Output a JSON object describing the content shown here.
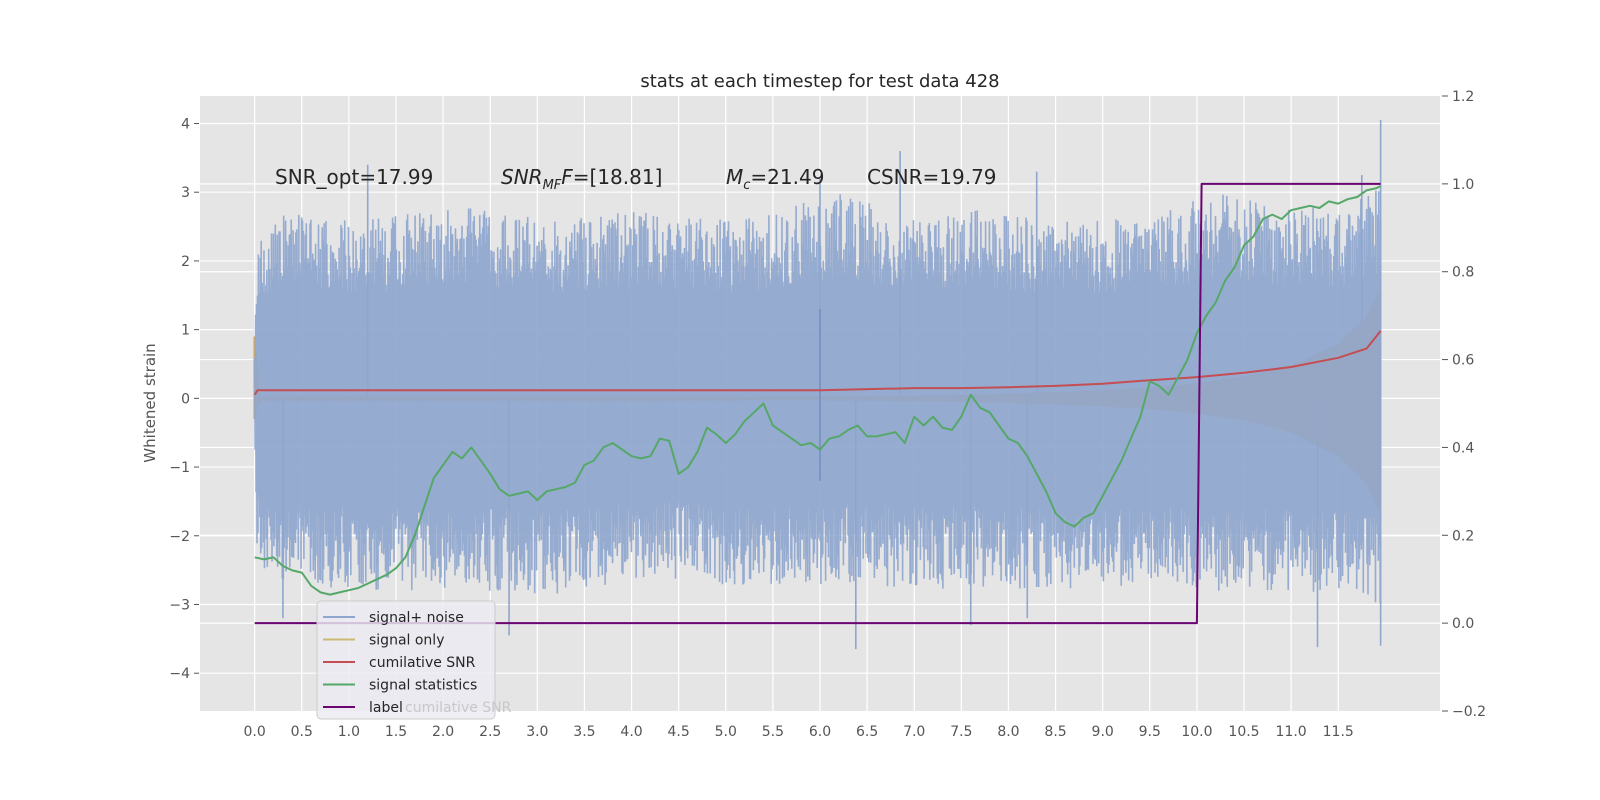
{
  "chart_data": {
    "type": "line",
    "title": "stats at each timestep for test data 428",
    "ylabel": "Whitened strain",
    "xlim": [
      -0.58,
      12.58
    ],
    "ylim": [
      -4.55,
      4.4
    ],
    "y2lim": [
      -0.2,
      1.2
    ],
    "xticks": [
      "0.0",
      "0.5",
      "1.0",
      "1.5",
      "2.0",
      "2.5",
      "3.0",
      "3.5",
      "4.0",
      "4.5",
      "5.0",
      "5.5",
      "6.0",
      "6.5",
      "7.0",
      "7.5",
      "8.0",
      "8.5",
      "9.0",
      "9.5",
      "10.0",
      "10.5",
      "11.0",
      "11.5"
    ],
    "yticks": [
      "4",
      "3",
      "2",
      "1",
      "0",
      "−1",
      "−2",
      "−3",
      "−4"
    ],
    "y2ticks": [
      "1.2",
      "1.0",
      "0.8",
      "0.6",
      "0.4",
      "0.2",
      "0.0",
      "−0.2"
    ],
    "grid": true,
    "legend_placement": "lower-left",
    "annotations": [
      "SNR_opt=17.99",
      "[18.81]",
      "=21.49",
      "CSNR=19.79"
    ],
    "annotation_math": {
      "snr": "SNR",
      "mf": "MF",
      "mc": "M",
      "mc_sub": "c"
    },
    "noise_envelope": {
      "x": [
        0,
        0.02,
        0.2,
        1.2,
        2.2,
        3.2,
        4.2,
        5.2,
        6.2,
        7.0,
        7.6,
        8.3,
        8.9,
        9.6,
        10.2,
        10.9,
        11.6,
        11.95
      ],
      "upper": [
        0.9,
        2.3,
        2.7,
        2.6,
        2.8,
        2.6,
        2.75,
        2.6,
        3.0,
        2.6,
        2.8,
        2.6,
        2.6,
        2.75,
        3.0,
        2.8,
        2.8,
        3.1
      ],
      "lower": [
        -0.6,
        -2.4,
        -2.7,
        -2.8,
        -2.8,
        -2.85,
        -2.6,
        -2.75,
        -2.7,
        -2.8,
        -2.75,
        -2.8,
        -2.75,
        -2.7,
        -2.8,
        -2.8,
        -2.85,
        -3.0
      ]
    },
    "noise_spikes": [
      {
        "x": 1.2,
        "y": 3.4
      },
      {
        "x": 0.3,
        "y": -3.2
      },
      {
        "x": 2.7,
        "y": -3.45
      },
      {
        "x": 6.0,
        "y": 3.2
      },
      {
        "x": 6.38,
        "y": -3.65
      },
      {
        "x": 6.85,
        "y": 3.6
      },
      {
        "x": 7.6,
        "y": -3.3
      },
      {
        "x": 8.2,
        "y": -3.2
      },
      {
        "x": 8.3,
        "y": 3.3
      },
      {
        "x": 11.28,
        "y": -3.62
      },
      {
        "x": 11.75,
        "y": 3.25
      },
      {
        "x": 11.95,
        "y": 4.05
      },
      {
        "x": 11.95,
        "y": -3.6
      }
    ],
    "signal_envelope": {
      "x": [
        0,
        0.01,
        0.05,
        0.1,
        1,
        2,
        3,
        4,
        5,
        6,
        7,
        7.5,
        8,
        8.5,
        9,
        9.5,
        10,
        10.5,
        11,
        11.5,
        11.8,
        11.95
      ],
      "upper": [
        0.9,
        0.9,
        0.05,
        0.02,
        0.02,
        0.02,
        0.02,
        0.02,
        0.02,
        0.03,
        0.04,
        0.05,
        0.07,
        0.09,
        0.12,
        0.16,
        0.22,
        0.32,
        0.48,
        0.8,
        1.2,
        1.6
      ],
      "lower": [
        -0.3,
        -0.3,
        -0.05,
        -0.02,
        -0.02,
        -0.02,
        -0.02,
        -0.02,
        -0.02,
        -0.03,
        -0.04,
        -0.05,
        -0.07,
        -0.09,
        -0.12,
        -0.16,
        -0.22,
        -0.32,
        -0.5,
        -0.85,
        -1.25,
        -1.7
      ]
    },
    "series": [
      {
        "name": "cumilative SNR",
        "axis": "right",
        "color": "#c44e52",
        "x": [
          0,
          0.03,
          1,
          2,
          3,
          4,
          5,
          6,
          7,
          7.5,
          8,
          8.5,
          9,
          9.5,
          10,
          10.5,
          11,
          11.5,
          11.8,
          11.95
        ],
        "y": [
          0.52,
          0.53,
          0.53,
          0.53,
          0.53,
          0.53,
          0.53,
          0.53,
          0.535,
          0.535,
          0.537,
          0.54,
          0.545,
          0.553,
          0.56,
          0.57,
          0.583,
          0.604,
          0.625,
          0.665
        ]
      },
      {
        "name": "signal statistics",
        "axis": "right",
        "color": "#55a868",
        "x": [
          0,
          0.1,
          0.2,
          0.3,
          0.4,
          0.5,
          0.6,
          0.7,
          0.8,
          0.9,
          1.0,
          1.1,
          1.2,
          1.3,
          1.4,
          1.5,
          1.6,
          1.7,
          1.8,
          1.9,
          2.0,
          2.1,
          2.2,
          2.3,
          2.4,
          2.5,
          2.6,
          2.7,
          2.8,
          2.9,
          3.0,
          3.1,
          3.2,
          3.3,
          3.4,
          3.5,
          3.6,
          3.7,
          3.8,
          3.9,
          4.0,
          4.1,
          4.2,
          4.3,
          4.4,
          4.5,
          4.6,
          4.7,
          4.8,
          4.9,
          5.0,
          5.1,
          5.2,
          5.3,
          5.4,
          5.5,
          5.6,
          5.7,
          5.8,
          5.9,
          6.0,
          6.1,
          6.2,
          6.3,
          6.4,
          6.5,
          6.6,
          6.7,
          6.8,
          6.9,
          7.0,
          7.1,
          7.2,
          7.3,
          7.4,
          7.5,
          7.6,
          7.7,
          7.8,
          7.9,
          8.0,
          8.1,
          8.2,
          8.3,
          8.4,
          8.5,
          8.6,
          8.7,
          8.8,
          8.9,
          9.0,
          9.1,
          9.2,
          9.3,
          9.4,
          9.5,
          9.6,
          9.7,
          9.8,
          9.9,
          10.0,
          10.1,
          10.2,
          10.3,
          10.4,
          10.5,
          10.6,
          10.7,
          10.8,
          10.9,
          11.0,
          11.1,
          11.2,
          11.3,
          11.4,
          11.5,
          11.6,
          11.7,
          11.8,
          11.9,
          11.95
        ],
        "y": [
          0.15,
          0.145,
          0.15,
          0.13,
          0.12,
          0.115,
          0.085,
          0.07,
          0.065,
          0.07,
          0.075,
          0.08,
          0.09,
          0.1,
          0.11,
          0.125,
          0.15,
          0.2,
          0.265,
          0.33,
          0.36,
          0.39,
          0.375,
          0.4,
          0.37,
          0.34,
          0.305,
          0.29,
          0.295,
          0.3,
          0.28,
          0.3,
          0.305,
          0.31,
          0.32,
          0.36,
          0.37,
          0.4,
          0.41,
          0.395,
          0.38,
          0.375,
          0.38,
          0.42,
          0.415,
          0.34,
          0.355,
          0.39,
          0.445,
          0.43,
          0.41,
          0.43,
          0.46,
          0.48,
          0.5,
          0.45,
          0.435,
          0.42,
          0.405,
          0.41,
          0.395,
          0.42,
          0.425,
          0.44,
          0.45,
          0.425,
          0.425,
          0.43,
          0.435,
          0.41,
          0.47,
          0.45,
          0.47,
          0.445,
          0.44,
          0.47,
          0.52,
          0.49,
          0.48,
          0.45,
          0.42,
          0.41,
          0.38,
          0.34,
          0.3,
          0.25,
          0.23,
          0.22,
          0.24,
          0.25,
          0.29,
          0.33,
          0.37,
          0.42,
          0.47,
          0.55,
          0.54,
          0.52,
          0.56,
          0.6,
          0.66,
          0.7,
          0.73,
          0.78,
          0.81,
          0.86,
          0.88,
          0.92,
          0.93,
          0.92,
          0.94,
          0.945,
          0.95,
          0.945,
          0.96,
          0.955,
          0.965,
          0.97,
          0.985,
          0.99,
          0.995
        ]
      },
      {
        "name": "label",
        "axis": "right",
        "color": "#6a0572",
        "x": [
          0,
          10.0,
          10.05,
          11.95
        ],
        "y": [
          0,
          0,
          1,
          1
        ]
      }
    ],
    "legend": [
      "signal+ noise",
      "signal only",
      "cumilative SNR",
      "signal statistics",
      "label"
    ],
    "legend_ghost_text": "cumilative SNR",
    "colors": {
      "axes_bg": "#e5e5e5",
      "grid": "#ffffff",
      "noise": "#8fa6ce",
      "signal": "#ddaa55",
      "signal_line": "#ccb974"
    }
  }
}
